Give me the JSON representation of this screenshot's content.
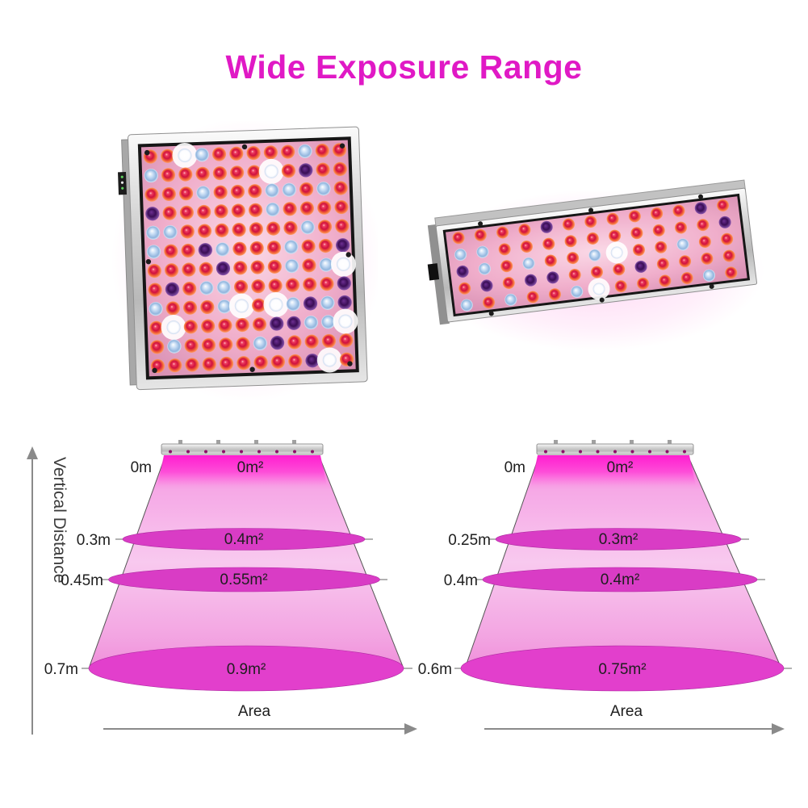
{
  "title": "Wide Exposure Range",
  "colors": {
    "title": "#e019c5",
    "cone_bright": "#ff4fd6",
    "cone_pale": "#f8c9ef",
    "ellipse": "#d93cc5",
    "ellipse_bottom": "#e23fcc",
    "glow": "#ff1fd0",
    "axis_gray": "#8a8a8a",
    "label_text": "#1e1e1e"
  },
  "led_colors": {
    "red_center": "#cf1040",
    "orange_ring": "#ff9e62",
    "blue": "#90b4dd",
    "purple": "#3a0d55",
    "white": "#ffffff",
    "board_pink": "#f0aecb"
  },
  "axes": {
    "vertical_label": "Vertical Distance",
    "horizontal_label": "Area"
  },
  "diagrams": [
    {
      "levels": [
        {
          "distance": "0m",
          "area": "0m²"
        },
        {
          "distance": "0.3m",
          "area": "0.4m²"
        },
        {
          "distance": "0.45m",
          "area": "0.55m²"
        },
        {
          "distance": "0.7m",
          "area": "0.9m²"
        }
      ],
      "x_axis_label": "Area"
    },
    {
      "levels": [
        {
          "distance": "0m",
          "area": "0m²"
        },
        {
          "distance": "0.25m",
          "area": "0.3m²"
        },
        {
          "distance": "0.4m",
          "area": "0.4m²"
        },
        {
          "distance": "0.6m",
          "area": "0.75m²"
        }
      ],
      "x_axis_label": "Area"
    }
  ]
}
